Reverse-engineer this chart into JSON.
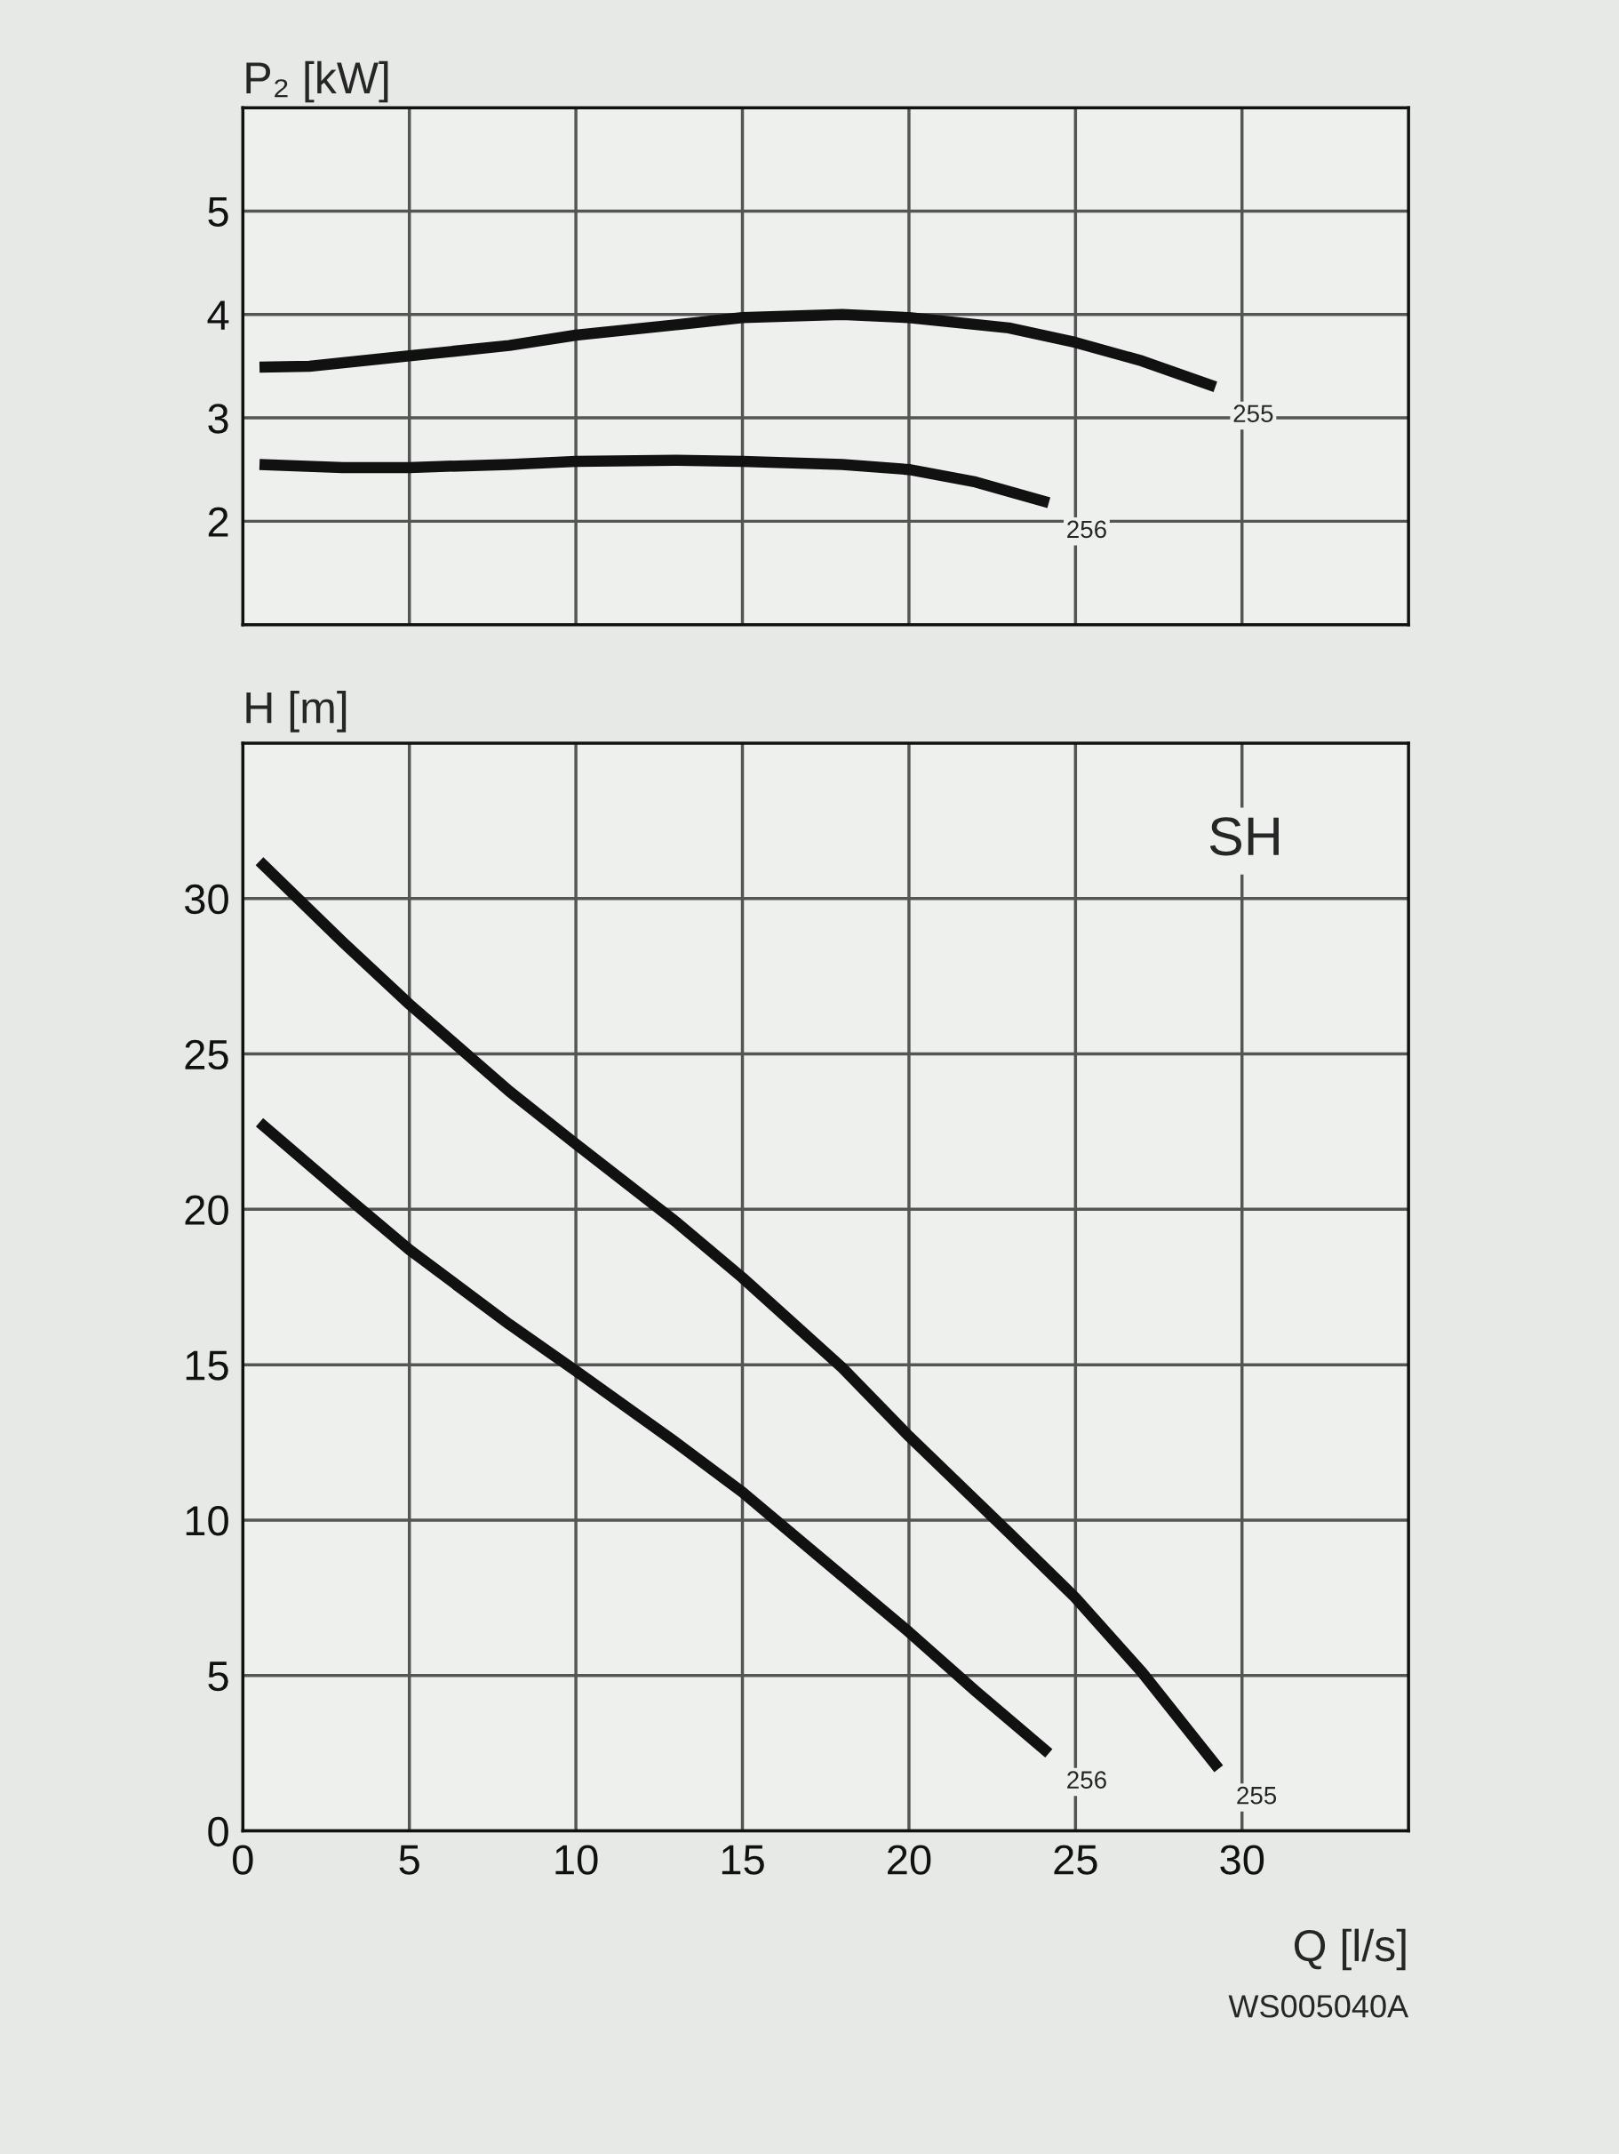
{
  "chart_data": [
    {
      "type": "line",
      "ylabel": "P₂ [kW]",
      "xlim": [
        0,
        35
      ],
      "ylim": [
        1,
        6
      ],
      "xticks": [
        0,
        5,
        10,
        15,
        20,
        25,
        30
      ],
      "yticks": [
        2,
        3,
        4,
        5
      ],
      "tick_labels": "y",
      "grid": true,
      "legend": false,
      "marker": "none",
      "line_style": "solid",
      "series": [
        {
          "name": "255",
          "color": "#111111",
          "x": [
            0.5,
            2,
            5,
            8,
            10,
            13,
            15,
            18,
            20,
            23,
            25,
            27,
            29.2
          ],
          "values": [
            3.49,
            3.5,
            3.6,
            3.7,
            3.8,
            3.9,
            3.97,
            4.0,
            3.97,
            3.87,
            3.73,
            3.55,
            3.3
          ]
        },
        {
          "name": "256",
          "color": "#111111",
          "x": [
            0.5,
            3,
            5,
            8,
            10,
            13,
            15,
            18,
            20,
            22,
            24.2
          ],
          "values": [
            2.55,
            2.52,
            2.52,
            2.55,
            2.58,
            2.59,
            2.58,
            2.55,
            2.5,
            2.38,
            2.18
          ]
        }
      ]
    },
    {
      "type": "line",
      "ylabel": "H [m]",
      "xlabel": "Q [l/s]",
      "xlim": [
        0,
        35
      ],
      "ylim": [
        0,
        35
      ],
      "xticks": [
        0,
        5,
        10,
        15,
        20,
        25,
        30
      ],
      "yticks": [
        0,
        5,
        10,
        15,
        20,
        25,
        30
      ],
      "grid": true,
      "legend": false,
      "marker": "none",
      "line_style": "solid",
      "annotations": [
        "SH",
        "WS005040A"
      ],
      "series": [
        {
          "name": "255",
          "color": "#111111",
          "x": [
            0.5,
            3,
            5,
            8,
            10,
            13,
            15,
            18,
            20,
            23,
            25,
            27,
            29.3
          ],
          "values": [
            31.2,
            28.6,
            26.6,
            23.8,
            22.1,
            19.6,
            17.8,
            14.9,
            12.7,
            9.6,
            7.5,
            5.1,
            2.0
          ]
        },
        {
          "name": "256",
          "color": "#111111",
          "x": [
            0.5,
            3,
            5,
            8,
            10,
            13,
            15,
            18,
            20,
            22,
            24.2
          ],
          "values": [
            22.8,
            20.5,
            18.7,
            16.3,
            14.8,
            12.5,
            10.9,
            8.2,
            6.4,
            4.5,
            2.5
          ]
        }
      ]
    }
  ]
}
